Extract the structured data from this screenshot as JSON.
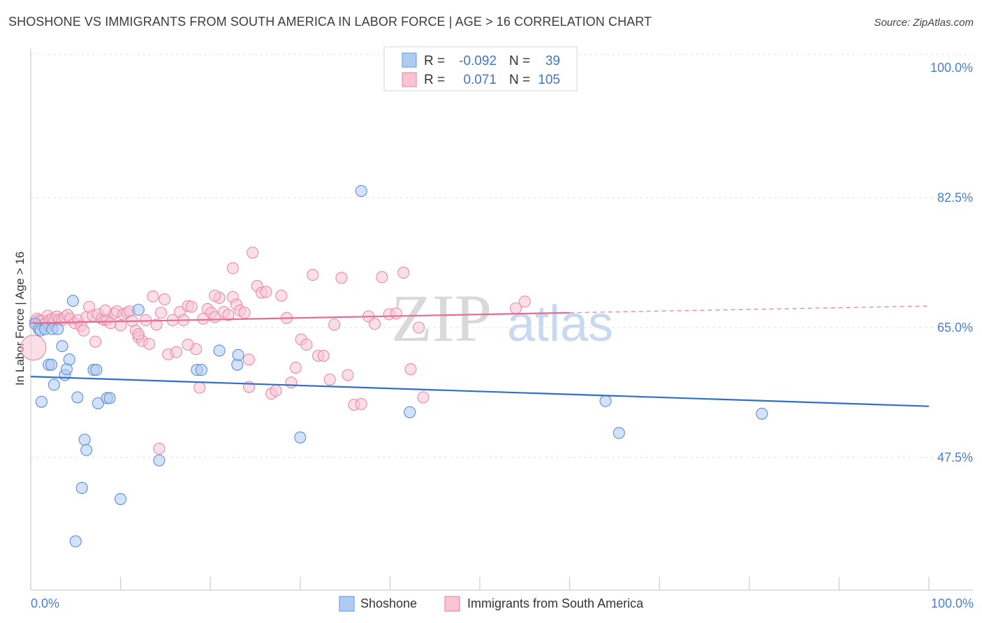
{
  "header": {
    "title": "SHOSHONE VS IMMIGRANTS FROM SOUTH AMERICA IN LABOR FORCE | AGE > 16 CORRELATION CHART",
    "source": "Source: ZipAtlas.com"
  },
  "watermark": {
    "zip": "ZIP",
    "atlas": "atlas"
  },
  "stats_legend": {
    "rows": [
      {
        "r_label": "R =",
        "r_value": "-0.092",
        "n_label": "N =",
        "n_value": "39",
        "color": "#6fa3e8"
      },
      {
        "r_label": "R =",
        "r_value": "0.071",
        "n_label": "N =",
        "n_value": "105",
        "color": "#f08cab"
      }
    ]
  },
  "colors": {
    "shoshone_fill": "#aecbf2",
    "shoshone_stroke": "#5c8fd6",
    "shoshone_line": "#2f6fc9",
    "immig_fill": "#f8c4d4",
    "immig_stroke": "#e98aa9",
    "immig_line": "#e86a97",
    "tick_color": "#4a7fd0"
  },
  "chart_data": {
    "type": "scatter",
    "title": "SHOSHONE VS IMMIGRANTS FROM SOUTH AMERICA IN LABOR FORCE | AGE > 16 CORRELATION CHART",
    "xlabel": "",
    "ylabel": "In Labor Force | Age > 16",
    "xlim": [
      0,
      100
    ],
    "ylim": [
      30,
      100
    ],
    "x_tick_labels": [
      "0.0%",
      "100.0%"
    ],
    "y_ticks": [
      47.5,
      65.0,
      82.5,
      100.0
    ],
    "y_tick_labels": [
      "47.5%",
      "65.0%",
      "82.5%",
      "100.0%"
    ],
    "grid": true,
    "legend_position": "bottom-center",
    "series": [
      {
        "name": "Shoshone",
        "points": [
          [
            0.5,
            65.5
          ],
          [
            0.9,
            64.8
          ],
          [
            1.1,
            64.6
          ],
          [
            1.2,
            55.0
          ],
          [
            1.6,
            64.8
          ],
          [
            2.0,
            60.0
          ],
          [
            2.3,
            60.0
          ],
          [
            2.4,
            64.8
          ],
          [
            2.6,
            57.3
          ],
          [
            3.0,
            64.8
          ],
          [
            3.5,
            62.5
          ],
          [
            3.8,
            58.6
          ],
          [
            4.0,
            59.4
          ],
          [
            4.3,
            60.7
          ],
          [
            4.7,
            68.6
          ],
          [
            5.2,
            55.6
          ],
          [
            5.7,
            43.4
          ],
          [
            6.0,
            49.9
          ],
          [
            6.2,
            48.5
          ],
          [
            7.0,
            59.3
          ],
          [
            7.3,
            59.3
          ],
          [
            7.5,
            54.8
          ],
          [
            8.5,
            55.5
          ],
          [
            8.8,
            55.5
          ],
          [
            10.0,
            41.9
          ],
          [
            12.0,
            67.4
          ],
          [
            14.3,
            47.1
          ],
          [
            18.5,
            59.3
          ],
          [
            19.0,
            59.3
          ],
          [
            21.0,
            61.9
          ],
          [
            23.0,
            60.0
          ],
          [
            23.1,
            61.3
          ],
          [
            30.0,
            50.2
          ],
          [
            36.8,
            83.4
          ],
          [
            42.2,
            53.6
          ],
          [
            64.0,
            55.1
          ],
          [
            65.5,
            50.8
          ],
          [
            81.4,
            53.4
          ],
          [
            5.0,
            36.2
          ]
        ]
      },
      {
        "name": "Immigrants from South America",
        "points": [
          [
            0.3,
            62.3
          ],
          [
            0.5,
            65.8
          ],
          [
            0.7,
            66.2
          ],
          [
            1.0,
            66.0
          ],
          [
            1.3,
            65.9
          ],
          [
            1.6,
            65.5
          ],
          [
            1.9,
            66.6
          ],
          [
            2.1,
            66.0
          ],
          [
            2.4,
            66.2
          ],
          [
            2.6,
            65.9
          ],
          [
            2.9,
            66.5
          ],
          [
            3.2,
            66.1
          ],
          [
            3.5,
            66.0
          ],
          [
            3.8,
            66.4
          ],
          [
            4.1,
            66.7
          ],
          [
            4.4,
            66.2
          ],
          [
            4.9,
            65.6
          ],
          [
            5.3,
            66.0
          ],
          [
            5.6,
            65.2
          ],
          [
            5.9,
            64.6
          ],
          [
            6.2,
            66.4
          ],
          [
            6.5,
            67.8
          ],
          [
            6.9,
            66.6
          ],
          [
            7.2,
            63.1
          ],
          [
            7.5,
            66.8
          ],
          [
            7.9,
            66.2
          ],
          [
            8.2,
            66.0
          ],
          [
            8.5,
            66.1
          ],
          [
            8.9,
            65.6
          ],
          [
            9.3,
            66.9
          ],
          [
            9.6,
            67.2
          ],
          [
            10.0,
            65.3
          ],
          [
            10.3,
            66.8
          ],
          [
            10.7,
            67.0
          ],
          [
            11.0,
            67.2
          ],
          [
            11.3,
            65.9
          ],
          [
            11.7,
            64.6
          ],
          [
            12.0,
            63.7
          ],
          [
            12.4,
            63.2
          ],
          [
            12.8,
            66.0
          ],
          [
            13.2,
            62.8
          ],
          [
            13.6,
            69.2
          ],
          [
            14.0,
            65.4
          ],
          [
            14.5,
            67.0
          ],
          [
            14.9,
            68.8
          ],
          [
            15.3,
            61.4
          ],
          [
            15.8,
            66.0
          ],
          [
            16.2,
            61.7
          ],
          [
            16.6,
            67.1
          ],
          [
            17.0,
            66.0
          ],
          [
            17.5,
            67.9
          ],
          [
            17.9,
            67.8
          ],
          [
            18.4,
            62.1
          ],
          [
            18.8,
            56.9
          ],
          [
            19.2,
            66.2
          ],
          [
            19.7,
            67.5
          ],
          [
            20.1,
            67.0
          ],
          [
            20.5,
            66.4
          ],
          [
            21.0,
            69.0
          ],
          [
            21.5,
            67.1
          ],
          [
            22.0,
            66.7
          ],
          [
            22.5,
            69.1
          ],
          [
            22.9,
            68.1
          ],
          [
            23.3,
            67.3
          ],
          [
            23.8,
            67.0
          ],
          [
            24.3,
            57.0
          ],
          [
            24.7,
            75.1
          ],
          [
            25.2,
            70.6
          ],
          [
            25.7,
            69.7
          ],
          [
            26.2,
            69.8
          ],
          [
            26.8,
            56.1
          ],
          [
            27.3,
            56.5
          ],
          [
            27.9,
            69.3
          ],
          [
            28.5,
            66.3
          ],
          [
            29.0,
            57.6
          ],
          [
            29.5,
            59.6
          ],
          [
            30.1,
            63.4
          ],
          [
            30.7,
            62.7
          ],
          [
            31.4,
            72.1
          ],
          [
            32.0,
            61.2
          ],
          [
            32.6,
            61.2
          ],
          [
            33.3,
            58.0
          ],
          [
            33.8,
            65.4
          ],
          [
            34.6,
            71.7
          ],
          [
            35.3,
            58.6
          ],
          [
            36.0,
            54.6
          ],
          [
            36.8,
            54.7
          ],
          [
            37.6,
            66.5
          ],
          [
            38.3,
            65.5
          ],
          [
            39.1,
            71.8
          ],
          [
            39.9,
            66.8
          ],
          [
            40.7,
            66.9
          ],
          [
            41.5,
            72.4
          ],
          [
            42.3,
            59.4
          ],
          [
            43.2,
            65.0
          ],
          [
            43.7,
            55.6
          ],
          [
            8.3,
            67.3
          ],
          [
            12.0,
            64.1
          ],
          [
            14.3,
            48.7
          ],
          [
            17.5,
            62.7
          ],
          [
            24.3,
            60.7
          ],
          [
            20.5,
            69.3
          ],
          [
            22.5,
            73.0
          ],
          [
            54.0,
            67.6
          ],
          [
            55.0,
            68.5
          ]
        ]
      }
    ],
    "trend_lines": [
      {
        "series": "Shoshone",
        "y_at_x0": 58.4,
        "y_at_x100": 54.4
      },
      {
        "series": "Immigrants from South America",
        "y_at_x0": 65.6,
        "y_at_x60": 67.0,
        "y_at_x100": 67.9
      }
    ]
  },
  "bottom_legend": {
    "items": [
      {
        "label": "Shoshone"
      },
      {
        "label": "Immigrants from South America"
      }
    ]
  }
}
